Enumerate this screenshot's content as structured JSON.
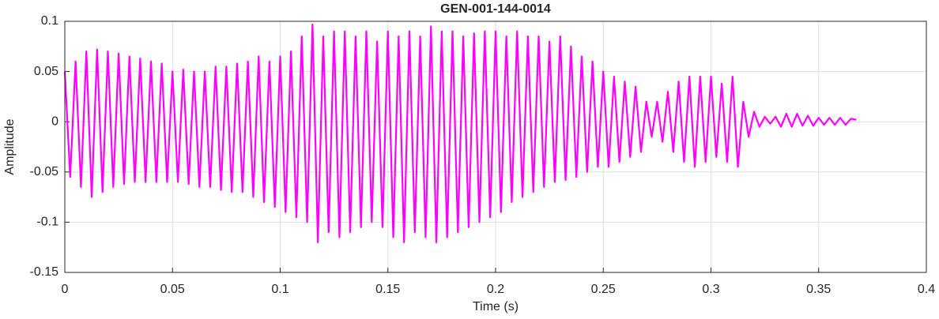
{
  "chart_data": {
    "type": "line",
    "title": "GEN-001-144-0014",
    "xlabel": "Time (s)",
    "ylabel": "Amplitude",
    "xlim": [
      0,
      0.4
    ],
    "ylim": [
      -0.15,
      0.1
    ],
    "xticks": [
      0,
      0.05,
      0.1,
      0.15,
      0.2,
      0.25,
      0.3,
      0.35,
      0.4
    ],
    "yticks": [
      -0.15,
      -0.1,
      -0.05,
      0,
      0.05,
      0.1
    ],
    "grid": true,
    "x": [
      0,
      0.0025,
      0.005,
      0.0075,
      0.01,
      0.0125,
      0.015,
      0.0175,
      0.02,
      0.0225,
      0.025,
      0.0275,
      0.03,
      0.0325,
      0.035,
      0.0375,
      0.04,
      0.0425,
      0.045,
      0.0475,
      0.05,
      0.0525,
      0.055,
      0.0575,
      0.06,
      0.0625,
      0.065,
      0.0675,
      0.07,
      0.0725,
      0.075,
      0.0775,
      0.08,
      0.0825,
      0.085,
      0.0875,
      0.09,
      0.0925,
      0.095,
      0.0975,
      0.1,
      0.1025,
      0.105,
      0.1075,
      0.11,
      0.1125,
      0.115,
      0.1175,
      0.12,
      0.1225,
      0.125,
      0.1275,
      0.13,
      0.1325,
      0.135,
      0.1375,
      0.14,
      0.1425,
      0.145,
      0.1475,
      0.15,
      0.1525,
      0.155,
      0.1575,
      0.16,
      0.1625,
      0.165,
      0.1675,
      0.17,
      0.1725,
      0.175,
      0.1775,
      0.18,
      0.1825,
      0.185,
      0.1875,
      0.19,
      0.1925,
      0.195,
      0.1975,
      0.2,
      0.2025,
      0.205,
      0.2075,
      0.21,
      0.2125,
      0.215,
      0.2175,
      0.22,
      0.2225,
      0.225,
      0.2275,
      0.23,
      0.2325,
      0.235,
      0.2375,
      0.24,
      0.2425,
      0.245,
      0.2475,
      0.25,
      0.2525,
      0.255,
      0.2575,
      0.26,
      0.2625,
      0.265,
      0.2675,
      0.27,
      0.2725,
      0.275,
      0.2775,
      0.28,
      0.2825,
      0.285,
      0.2875,
      0.29,
      0.2925,
      0.295,
      0.2975,
      0.3,
      0.3025,
      0.305,
      0.3075,
      0.31,
      0.3125,
      0.315,
      0.3175,
      0.32,
      0.3225,
      0.325,
      0.3275,
      0.33,
      0.3325,
      0.335,
      0.3375,
      0.34,
      0.3425,
      0.345,
      0.3475,
      0.35,
      0.3525,
      0.355,
      0.3575,
      0.36,
      0.3625,
      0.365,
      0.3675
    ],
    "series": [
      {
        "color": "#ff00ff",
        "values": [
          0.05,
          -0.055,
          0.06,
          -0.065,
          0.07,
          -0.075,
          0.072,
          -0.07,
          0.07,
          -0.065,
          0.068,
          -0.062,
          0.065,
          -0.06,
          0.063,
          -0.06,
          0.06,
          -0.06,
          0.058,
          -0.06,
          0.05,
          -0.06,
          0.052,
          -0.062,
          0.05,
          -0.065,
          0.05,
          -0.065,
          0.055,
          -0.068,
          0.055,
          -0.07,
          0.058,
          -0.07,
          0.06,
          -0.075,
          0.065,
          -0.08,
          0.06,
          -0.085,
          0.065,
          -0.09,
          0.07,
          -0.095,
          0.085,
          -0.1,
          0.097,
          -0.12,
          0.085,
          -0.11,
          0.09,
          -0.115,
          0.09,
          -0.11,
          0.085,
          -0.105,
          0.09,
          -0.1,
          0.08,
          -0.105,
          0.09,
          -0.115,
          0.085,
          -0.12,
          0.09,
          -0.11,
          0.085,
          -0.115,
          0.095,
          -0.12,
          0.09,
          -0.115,
          0.09,
          -0.11,
          0.085,
          -0.105,
          0.088,
          -0.1,
          0.09,
          -0.095,
          0.09,
          -0.09,
          0.085,
          -0.08,
          0.09,
          -0.075,
          0.085,
          -0.07,
          0.085,
          -0.065,
          0.08,
          -0.06,
          0.085,
          -0.058,
          0.075,
          -0.055,
          0.065,
          -0.05,
          0.06,
          -0.045,
          0.05,
          -0.045,
          0.045,
          -0.04,
          0.04,
          -0.035,
          0.035,
          -0.03,
          0.02,
          -0.015,
          0.02,
          -0.02,
          0.03,
          -0.03,
          0.04,
          -0.04,
          0.045,
          -0.045,
          0.045,
          -0.04,
          0.045,
          -0.035,
          0.038,
          -0.04,
          0.045,
          -0.045,
          0.02,
          -0.015,
          0.01,
          -0.005,
          0.005,
          -0.002,
          0.005,
          -0.005,
          0.008,
          -0.005,
          0.008,
          -0.004,
          0.006,
          -0.004,
          0.004,
          -0.003,
          0.004,
          -0.003,
          0.004,
          -0.003,
          0.003,
          0.002
        ]
      }
    ]
  }
}
